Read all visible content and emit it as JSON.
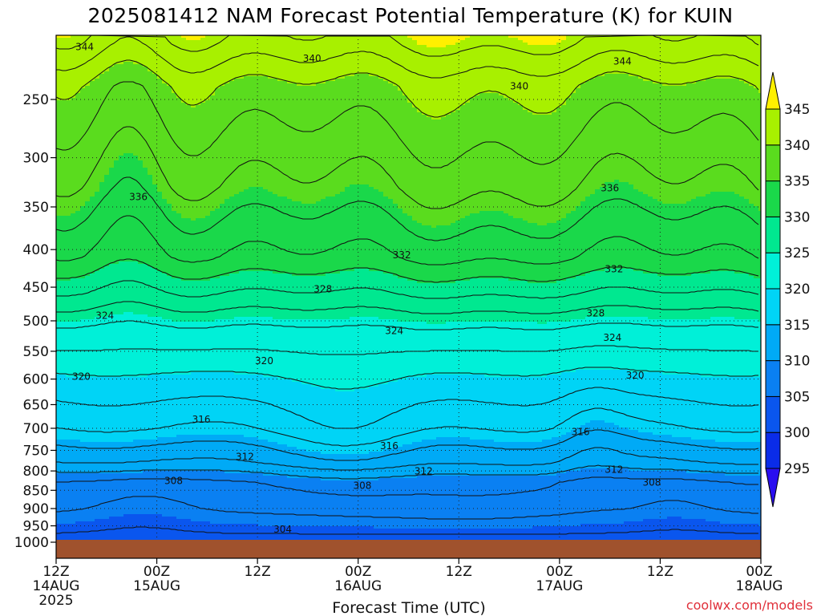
{
  "title": "2025081412 NAM Forecast Potential Temperature (K) for KUIN",
  "xlabel": "Forecast Time (UTC)",
  "credit": "coolwx.com/models",
  "year_label": "2025",
  "chart_data": {
    "type": "heatmap",
    "title": "2025081412 NAM Forecast Potential Temperature (K) for KUIN",
    "xlabel": "Forecast Time (UTC)",
    "ylabel": "",
    "x_ticks": [
      {
        "hour": 0,
        "label": "12Z",
        "date": "14AUG"
      },
      {
        "hour": 12,
        "label": "00Z",
        "date": "15AUG"
      },
      {
        "hour": 24,
        "label": "12Z",
        "date": ""
      },
      {
        "hour": 36,
        "label": "00Z",
        "date": "16AUG"
      },
      {
        "hour": 48,
        "label": "12Z",
        "date": ""
      },
      {
        "hour": 60,
        "label": "00Z",
        "date": "17AUG"
      },
      {
        "hour": 72,
        "label": "12Z",
        "date": ""
      },
      {
        "hour": 84,
        "label": "00Z",
        "date": "18AUG"
      }
    ],
    "xlim": [
      0,
      84
    ],
    "y_pressure_ticks": [
      250,
      300,
      350,
      400,
      450,
      500,
      550,
      600,
      650,
      700,
      750,
      800,
      850,
      900,
      950,
      1000
    ],
    "ylim": [
      200,
      1000
    ],
    "yscale": "log",
    "grid": true,
    "colorbar": {
      "levels": [
        295,
        300,
        305,
        310,
        315,
        320,
        325,
        330,
        335,
        340,
        345
      ],
      "labels": [
        "295",
        "300",
        "305",
        "310",
        "315",
        "320",
        "325",
        "330",
        "335",
        "340",
        "345"
      ],
      "colors": [
        "#2a0ef0",
        "#0a2ce8",
        "#0a56ee",
        "#0a80f2",
        "#00aaf6",
        "#00d4f6",
        "#00f0d8",
        "#00e890",
        "#1ad84a",
        "#5adc1e",
        "#a8f000",
        "#fff000"
      ],
      "placement": "right",
      "extend": "both"
    },
    "contour_labels": [
      {
        "value": 344,
        "hour": 3.4,
        "p": 212
      },
      {
        "value": 344,
        "hour": 67.5,
        "p": 222
      },
      {
        "value": 340,
        "hour": 30.5,
        "p": 220
      },
      {
        "value": 340,
        "hour": 55.2,
        "p": 240
      },
      {
        "value": 336,
        "hour": 9.8,
        "p": 339
      },
      {
        "value": 336,
        "hour": 66.0,
        "p": 330
      },
      {
        "value": 332,
        "hour": 41.2,
        "p": 407
      },
      {
        "value": 332,
        "hour": 66.5,
        "p": 425
      },
      {
        "value": 328,
        "hour": 31.8,
        "p": 453
      },
      {
        "value": 328,
        "hour": 64.3,
        "p": 488
      },
      {
        "value": 324,
        "hour": 5.8,
        "p": 492
      },
      {
        "value": 324,
        "hour": 40.3,
        "p": 516
      },
      {
        "value": 324,
        "hour": 66.3,
        "p": 527
      },
      {
        "value": 320,
        "hour": 24.8,
        "p": 567
      },
      {
        "value": 320,
        "hour": 3.0,
        "p": 595
      },
      {
        "value": 320,
        "hour": 69.0,
        "p": 593
      },
      {
        "value": 316,
        "hour": 17.3,
        "p": 681
      },
      {
        "value": 316,
        "hour": 39.7,
        "p": 740
      },
      {
        "value": 316,
        "hour": 62.5,
        "p": 708
      },
      {
        "value": 312,
        "hour": 22.5,
        "p": 765
      },
      {
        "value": 312,
        "hour": 43.8,
        "p": 801
      },
      {
        "value": 312,
        "hour": 66.5,
        "p": 797
      },
      {
        "value": 308,
        "hour": 14.0,
        "p": 825
      },
      {
        "value": 308,
        "hour": 36.5,
        "p": 838
      },
      {
        "value": 308,
        "hour": 71.0,
        "p": 829
      },
      {
        "value": 304,
        "hour": 27.0,
        "p": 961
      }
    ],
    "field_description": "Potential temperature increases with height: 304 K near 975 hPa, 308 K near 830 hPa, 312 K near 780 hPa, 316 K near 700 hPa, 320 K near 590 hPa, 324 K near 510 hPa, 328 K near 460 hPa, 332 K near 410 hPa, 336 K near 330 hPa, 340 K near 230 hPa, 344 K near 210 hPa; underground shown below ~985 hPa."
  }
}
